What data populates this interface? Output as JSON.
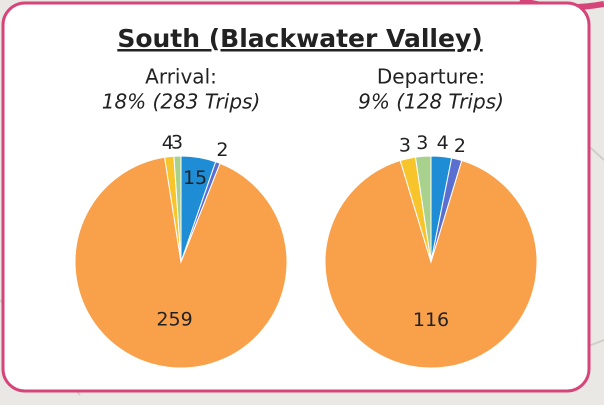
{
  "title": "South (Blackwater Valley)",
  "chart_data": [
    {
      "type": "pie",
      "title": "Arrival:",
      "subtitle": "18% (283 Trips)",
      "values": [
        15,
        2,
        259,
        4,
        3
      ],
      "colors": [
        "#1f8dd6",
        "#5b6fd0",
        "#f9a04a",
        "#f7c52b",
        "#a9d18e"
      ]
    },
    {
      "type": "pie",
      "title": "Departure:",
      "subtitle": "9% (128 Trips)",
      "values": [
        4,
        2,
        116,
        3,
        3
      ],
      "colors": [
        "#1f8dd6",
        "#5b6fd0",
        "#f9a04a",
        "#f7c52b",
        "#a9d18e"
      ]
    }
  ]
}
